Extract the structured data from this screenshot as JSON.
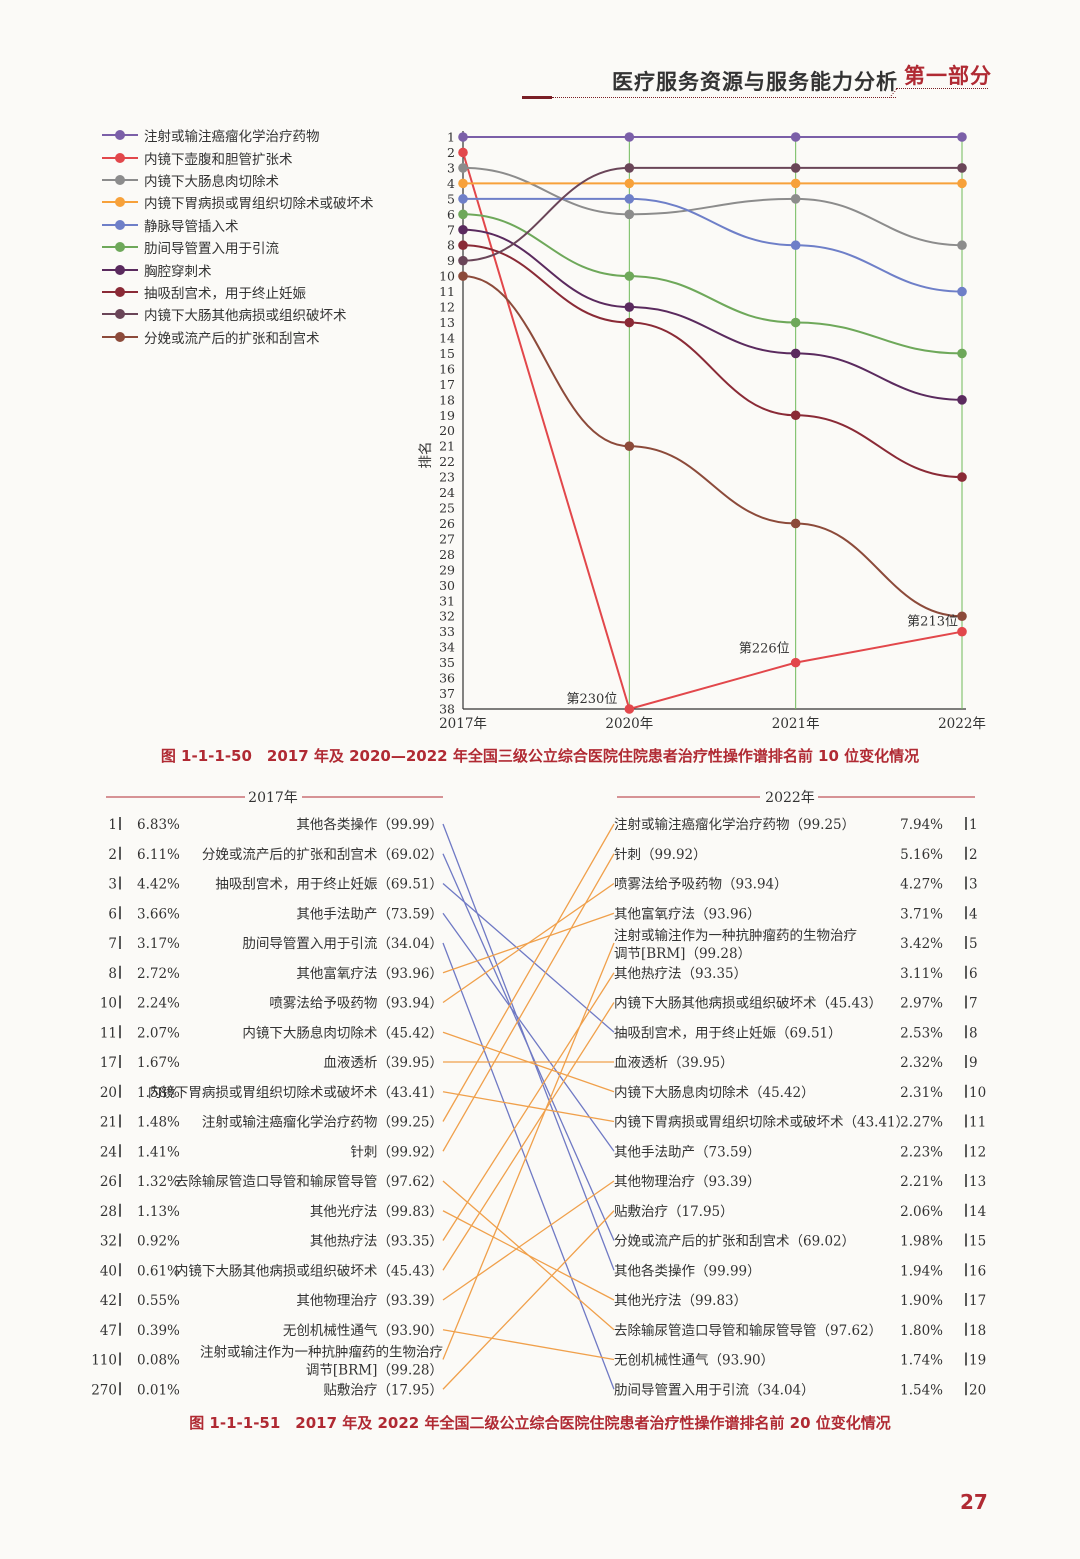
{
  "header": {
    "title": "医疗服务资源与服务能力分析",
    "part": "第一部分"
  },
  "page_number": "27",
  "colors": {
    "accent": "#b02a33",
    "gridline": "#6fba5a",
    "slope_up": "#f0a04b",
    "slope_down": "#6f79c4"
  },
  "chart_data": [
    {
      "type": "line",
      "title": "图 1-1-1-50　2017 年及 2020—2022 年全国三级公立综合医院住院患者治疗性操作谱排名前 10 位变化情况",
      "ylabel": "排名",
      "x": [
        "2017年",
        "2020年",
        "2021年",
        "2022年"
      ],
      "y_ticks": [
        "1",
        "2",
        "3",
        "4",
        "5",
        "6",
        "7",
        "8",
        "9",
        "10",
        "11",
        "12",
        "13",
        "14",
        "15",
        "16",
        "17",
        "18",
        "19",
        "20",
        "21",
        "22",
        "23",
        "24",
        "25",
        "26",
        "27",
        "28",
        "29",
        "30",
        "31",
        "32",
        "33",
        "34",
        "35",
        "36",
        "37",
        "38"
      ],
      "ylim": [
        1,
        38
      ],
      "y_inverted": true,
      "series": [
        {
          "name": "注射或输注癌瘤化学治疗药物",
          "color": "#7b5fa8",
          "values": [
            1,
            1,
            1,
            1
          ]
        },
        {
          "name": "内镜下壶腹和胆管扩张术",
          "color": "#e2474b",
          "values": [
            2,
            38,
            35,
            33
          ]
        },
        {
          "name": "内镜下大肠息肉切除术",
          "color": "#8c8c8c",
          "values": [
            3,
            6,
            5,
            8
          ]
        },
        {
          "name": "内镜下胃病损或胃组织切除术或破坏术",
          "color": "#f7a13a",
          "values": [
            4,
            4,
            4,
            4
          ]
        },
        {
          "name": "静脉导管插入术",
          "color": "#6e7fc8",
          "values": [
            5,
            5,
            8,
            11
          ]
        },
        {
          "name": "肋间导管置入用于引流",
          "color": "#6ea85a",
          "values": [
            6,
            10,
            13,
            15
          ]
        },
        {
          "name": "胸腔穿刺术",
          "color": "#5a2a5e",
          "values": [
            7,
            12,
            15,
            18
          ]
        },
        {
          "name": "抽吸刮宫术，用于终止妊娠",
          "color": "#8a2a36",
          "values": [
            8,
            13,
            19,
            23
          ]
        },
        {
          "name": "内镜下大肠其他病损或组织破坏术",
          "color": "#6a4558",
          "values": [
            9,
            3,
            3,
            3
          ]
        },
        {
          "name": "分娩或流产后的扩张和刮宫术",
          "color": "#8c4a3a",
          "values": [
            10,
            21,
            26,
            32
          ]
        }
      ],
      "annotations": [
        {
          "text": "第230位",
          "series": "内镜下壶腹和胆管扩张术",
          "x": "2020年"
        },
        {
          "text": "第226位",
          "series": "内镜下壶腹和胆管扩张术",
          "x": "2021年"
        },
        {
          "text": "第213位",
          "series": "内镜下壶腹和胆管扩张术",
          "x": "2022年"
        }
      ]
    },
    {
      "type": "table",
      "title": "图 1-1-1-51　2017 年及 2022 年全国二级公立综合医院住院患者治疗性操作谱排名前 20 位变化情况",
      "left_header": "2017年",
      "right_header": "2022年",
      "left": [
        {
          "rank": "1",
          "pct": "6.83%",
          "name": "其他各类操作（99.99）"
        },
        {
          "rank": "2",
          "pct": "6.11%",
          "name": "分娩或流产后的扩张和刮宫术（69.02）"
        },
        {
          "rank": "3",
          "pct": "4.42%",
          "name": "抽吸刮宫术，用于终止妊娠（69.51）"
        },
        {
          "rank": "6",
          "pct": "3.66%",
          "name": "其他手法助产（73.59）"
        },
        {
          "rank": "7",
          "pct": "3.17%",
          "name": "肋间导管置入用于引流（34.04）"
        },
        {
          "rank": "8",
          "pct": "2.72%",
          "name": "其他富氧疗法（93.96）"
        },
        {
          "rank": "10",
          "pct": "2.24%",
          "name": "喷雾法给予吸药物（93.94）"
        },
        {
          "rank": "11",
          "pct": "2.07%",
          "name": "内镜下大肠息肉切除术（45.42）"
        },
        {
          "rank": "17",
          "pct": "1.67%",
          "name": "血液透析（39.95）"
        },
        {
          "rank": "20",
          "pct": "1.58%",
          "name": "内镜下胃病损或胃组织切除术或破坏术（43.41）"
        },
        {
          "rank": "21",
          "pct": "1.48%",
          "name": "注射或输注癌瘤化学治疗药物（99.25）"
        },
        {
          "rank": "24",
          "pct": "1.41%",
          "name": "针刺（99.92）"
        },
        {
          "rank": "26",
          "pct": "1.32%",
          "name": "去除输尿管造口导管和输尿管导管（97.62）"
        },
        {
          "rank": "28",
          "pct": "1.13%",
          "name": "其他光疗法（99.83）"
        },
        {
          "rank": "32",
          "pct": "0.92%",
          "name": "其他热疗法（93.35）"
        },
        {
          "rank": "40",
          "pct": "0.61%",
          "name": "内镜下大肠其他病损或组织破坏术（45.43）"
        },
        {
          "rank": "42",
          "pct": "0.55%",
          "name": "其他物理治疗（93.39）"
        },
        {
          "rank": "47",
          "pct": "0.39%",
          "name": "无创机械性通气（93.90）"
        },
        {
          "rank": "110",
          "pct": "0.08%",
          "name_l1": "注射或输注作为一种抗肿瘤药的生物治疗",
          "name_l2": "调节[BRM]（99.28）"
        },
        {
          "rank": "270",
          "pct": "0.01%",
          "name": "贴敷治疗（17.95）"
        }
      ],
      "right": [
        {
          "rank": "1",
          "pct": "7.94%",
          "name": "注射或输注癌瘤化学治疗药物（99.25）"
        },
        {
          "rank": "2",
          "pct": "5.16%",
          "name": "针刺（99.92）"
        },
        {
          "rank": "3",
          "pct": "4.27%",
          "name": "喷雾法给予吸药物（93.94）"
        },
        {
          "rank": "4",
          "pct": "3.71%",
          "name": "其他富氧疗法（93.96）"
        },
        {
          "rank": "5",
          "pct": "3.42%",
          "name_l1": "注射或输注作为一种抗肿瘤药的生物治疗",
          "name_l2": "调节[BRM]（99.28）"
        },
        {
          "rank": "6",
          "pct": "3.11%",
          "name": "其他热疗法（93.35）"
        },
        {
          "rank": "7",
          "pct": "2.97%",
          "name": "内镜下大肠其他病损或组织破坏术（45.43）"
        },
        {
          "rank": "8",
          "pct": "2.53%",
          "name": "抽吸刮宫术，用于终止妊娠（69.51）"
        },
        {
          "rank": "9",
          "pct": "2.32%",
          "name": "血液透析（39.95）"
        },
        {
          "rank": "10",
          "pct": "2.31%",
          "name": "内镜下大肠息肉切除术（45.42）"
        },
        {
          "rank": "11",
          "pct": "2.27%",
          "name": "内镜下胃病损或胃组织切除术或破坏术（43.41）"
        },
        {
          "rank": "12",
          "pct": "2.23%",
          "name": "其他手法助产（73.59）"
        },
        {
          "rank": "13",
          "pct": "2.21%",
          "name": "其他物理治疗（93.39）"
        },
        {
          "rank": "14",
          "pct": "2.06%",
          "name": "贴敷治疗（17.95）"
        },
        {
          "rank": "15",
          "pct": "1.98%",
          "name": "分娩或流产后的扩张和刮宫术（69.02）"
        },
        {
          "rank": "16",
          "pct": "1.94%",
          "name": "其他各类操作（99.99）"
        },
        {
          "rank": "17",
          "pct": "1.90%",
          "name": "其他光疗法（99.83）"
        },
        {
          "rank": "18",
          "pct": "1.80%",
          "name": "去除输尿管造口导管和输尿管导管（97.62）"
        },
        {
          "rank": "19",
          "pct": "1.74%",
          "name": "无创机械性通气（93.90）"
        },
        {
          "rank": "20",
          "pct": "1.54%",
          "name": "肋间导管置入用于引流（34.04）"
        }
      ],
      "links": [
        {
          "from": "1",
          "to": "16",
          "dir": "down"
        },
        {
          "from": "2",
          "to": "15",
          "dir": "down"
        },
        {
          "from": "3",
          "to": "8",
          "dir": "down"
        },
        {
          "from": "6",
          "to": "12",
          "dir": "down"
        },
        {
          "from": "7",
          "to": "20",
          "dir": "down"
        },
        {
          "from": "8",
          "to": "4",
          "dir": "up"
        },
        {
          "from": "10",
          "to": "3",
          "dir": "up"
        },
        {
          "from": "11",
          "to": "10",
          "dir": "up"
        },
        {
          "from": "17",
          "to": "9",
          "dir": "up"
        },
        {
          "from": "20",
          "to": "11",
          "dir": "up"
        },
        {
          "from": "21",
          "to": "1",
          "dir": "up"
        },
        {
          "from": "24",
          "to": "2",
          "dir": "up"
        },
        {
          "from": "26",
          "to": "18",
          "dir": "up"
        },
        {
          "from": "28",
          "to": "17",
          "dir": "up"
        },
        {
          "from": "32",
          "to": "6",
          "dir": "up"
        },
        {
          "from": "40",
          "to": "7",
          "dir": "up"
        },
        {
          "from": "42",
          "to": "13",
          "dir": "up"
        },
        {
          "from": "47",
          "to": "19",
          "dir": "up"
        },
        {
          "from": "110",
          "to": "5",
          "dir": "up"
        },
        {
          "from": "270",
          "to": "14",
          "dir": "up"
        }
      ]
    }
  ]
}
